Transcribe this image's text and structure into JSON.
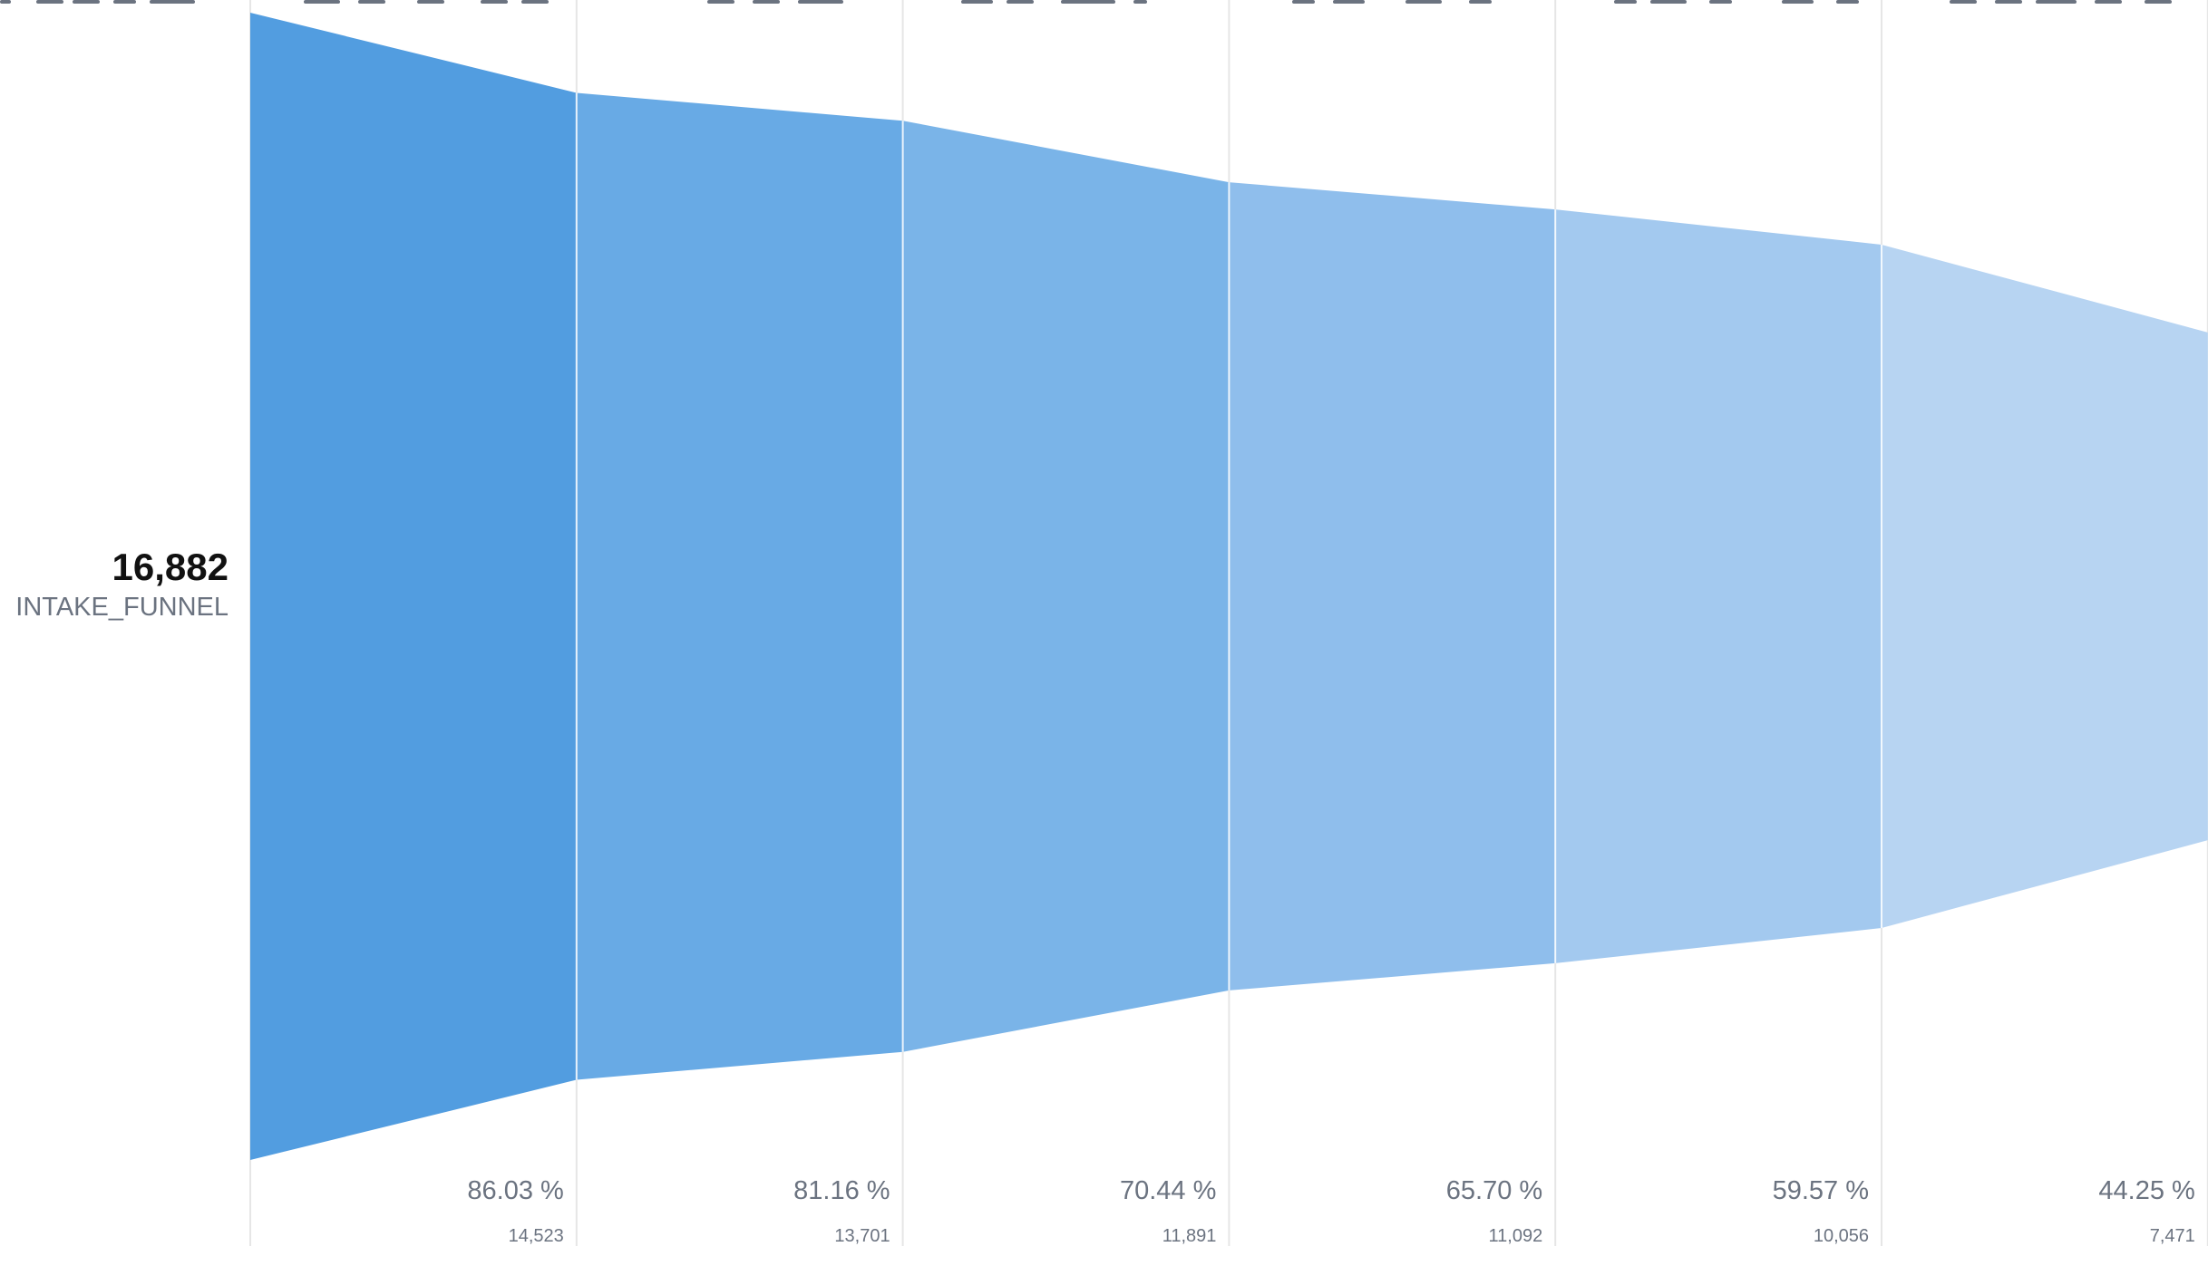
{
  "colors": {
    "steps": [
      "#529de0",
      "#68aae5",
      "#7ab4e8",
      "#8fbeec",
      "#a3c9ef",
      "#b7d4f2"
    ],
    "divider": "#e6e6e6",
    "text_primary": "#111111",
    "text_secondary": "#6b7380"
  },
  "chart_data": {
    "type": "funnel",
    "initial": {
      "value": "16,882",
      "label": "INTAKE_FUNNEL",
      "count": 16882
    },
    "steps": [
      {
        "percent_label": "86.03 %",
        "count_label": "14,523",
        "percent": 86.03,
        "count": 14523
      },
      {
        "percent_label": "81.16 %",
        "count_label": "13,701",
        "percent": 81.16,
        "count": 13701
      },
      {
        "percent_label": "70.44 %",
        "count_label": "11,891",
        "percent": 70.44,
        "count": 11891
      },
      {
        "percent_label": "65.70 %",
        "count_label": "11,092",
        "percent": 65.7,
        "count": 11092
      },
      {
        "percent_label": "59.57 %",
        "count_label": "10,056",
        "percent": 59.57,
        "count": 10056
      },
      {
        "percent_label": "44.25 %",
        "count_label": "7,471",
        "percent": 44.25,
        "count": 7471
      }
    ]
  }
}
